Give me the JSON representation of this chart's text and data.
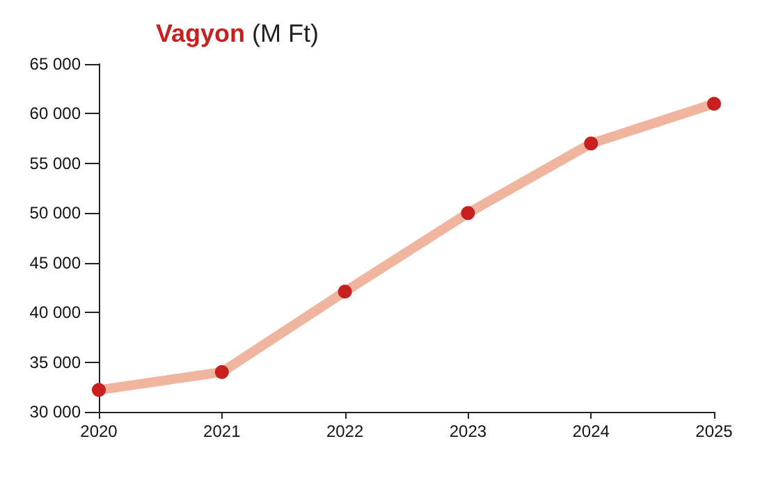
{
  "chart_data": {
    "type": "line",
    "title": "Vagyon",
    "ylabel": "(M Ft)",
    "categories": [
      "2020",
      "2021",
      "2022",
      "2023",
      "2024",
      "2025"
    ],
    "series": [
      {
        "color": "#efb59f",
        "colors": [
          "#c8201e",
          "#c8201e",
          "#c8201e",
          "#c8201e",
          "#c8201e",
          "#c8201e"
        ],
        "values": [
          32200,
          34000,
          42100,
          50000,
          57000,
          61000
        ]
      }
    ],
    "ylim": [
      30000,
      65000
    ],
    "yticks": [
      {
        "value": 30000,
        "label": "30 000"
      },
      {
        "value": 35000,
        "label": "35 000"
      },
      {
        "value": 40000,
        "label": "40 000"
      },
      {
        "value": 45000,
        "label": "45 000"
      },
      {
        "value": 50000,
        "label": "50 000"
      },
      {
        "value": 55000,
        "label": "55 000"
      },
      {
        "value": 60000,
        "label": "60 000"
      },
      {
        "value": 65000,
        "label": "65 000"
      }
    ],
    "grid": false,
    "marker": "circle",
    "line_style": "solid"
  }
}
